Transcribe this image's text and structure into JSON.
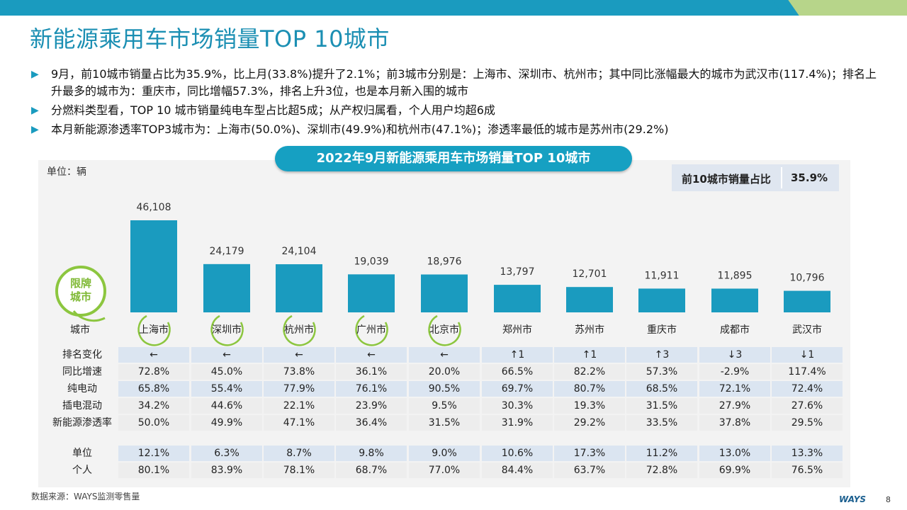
{
  "page": {
    "title": "新能源乘用车市场销量TOP 10城市",
    "bullet_marker": "▶",
    "bullets": [
      "9月，前10城市销量占比为35.9%，比上月(33.8%)提升了2.1%；前3城市分别是：上海市、深圳市、杭州市；其中同比涨幅最大的城市为武汉市(117.4%)；排名上升最多的城市为：重庆市，同比增幅57.3%，排名上升3位，也是本月新入围的城市",
      "分燃料类型看，TOP 10 城市销量纯电车型占比超5成；从产权归属看，个人用户均超6成",
      "本月新能源渗透率TOP3城市为：上海市(50.0%)、深圳市(49.9%)和杭州市(47.1%)；渗透率最低的城市是苏州市(29.2%)"
    ],
    "source": "数据来源：WAYS监测零售量",
    "logo_text": "WAYS",
    "page_number": "8",
    "colors": {
      "accent": "#1a9bbf",
      "bar": "#1a9bbf",
      "green": "#8cc63f",
      "row_shade": "#dbe5f1"
    }
  },
  "chart_data": {
    "type": "bar",
    "title": "2022年9月新能源乘用车市场销量TOP 10城市",
    "unit_note": "单位：辆",
    "share_label": "前10城市销量占比",
    "share_value": "35.9%",
    "badge_text": "限牌城市",
    "badge_line1": "限牌",
    "badge_line2": "城市",
    "city_header": "城市",
    "categories": [
      "上海市",
      "深圳市",
      "杭州市",
      "广州市",
      "北京市",
      "郑州市",
      "苏州市",
      "重庆市",
      "成都市",
      "武汉市"
    ],
    "restricted": [
      true,
      true,
      true,
      true,
      true,
      false,
      false,
      false,
      false,
      false
    ],
    "values": [
      46108,
      24179,
      24104,
      19039,
      18976,
      13797,
      12701,
      11911,
      11895,
      10796
    ],
    "value_labels": [
      "46,108",
      "24,179",
      "24,104",
      "19,039",
      "18,976",
      "13,797",
      "12,701",
      "11,911",
      "11,895",
      "10,796"
    ],
    "ylim": [
      0,
      50000
    ]
  },
  "table": {
    "group1": [
      {
        "label": "排名变化",
        "values": [
          "←",
          "←",
          "←",
          "←",
          "←",
          "↑1",
          "↑1",
          "↑3",
          "↓3",
          "↓1"
        ],
        "shaded": true
      },
      {
        "label": "同比增速",
        "values": [
          "72.8%",
          "45.0%",
          "73.8%",
          "36.1%",
          "20.0%",
          "66.5%",
          "82.2%",
          "57.3%",
          "-2.9%",
          "117.4%"
        ],
        "shaded": false
      },
      {
        "label": "纯电动",
        "values": [
          "65.8%",
          "55.4%",
          "77.9%",
          "76.1%",
          "90.5%",
          "69.7%",
          "80.7%",
          "68.5%",
          "72.1%",
          "72.4%"
        ],
        "shaded": true
      },
      {
        "label": "插电混动",
        "values": [
          "34.2%",
          "44.6%",
          "22.1%",
          "23.9%",
          "9.5%",
          "30.3%",
          "19.3%",
          "31.5%",
          "27.9%",
          "27.6%"
        ],
        "shaded": false
      },
      {
        "label": "新能源渗透率",
        "values": [
          "50.0%",
          "49.9%",
          "47.1%",
          "36.4%",
          "31.5%",
          "31.9%",
          "29.2%",
          "33.5%",
          "37.8%",
          "29.5%"
        ],
        "shaded": false
      }
    ],
    "group2": [
      {
        "label": "单位",
        "values": [
          "12.1%",
          "6.3%",
          "8.7%",
          "9.8%",
          "9.0%",
          "10.6%",
          "17.3%",
          "11.2%",
          "13.0%",
          "13.3%"
        ],
        "shaded": true
      },
      {
        "label": "个人",
        "values": [
          "80.1%",
          "83.9%",
          "78.1%",
          "68.7%",
          "77.0%",
          "84.4%",
          "63.7%",
          "72.8%",
          "69.9%",
          "76.5%"
        ],
        "shaded": false
      }
    ]
  }
}
